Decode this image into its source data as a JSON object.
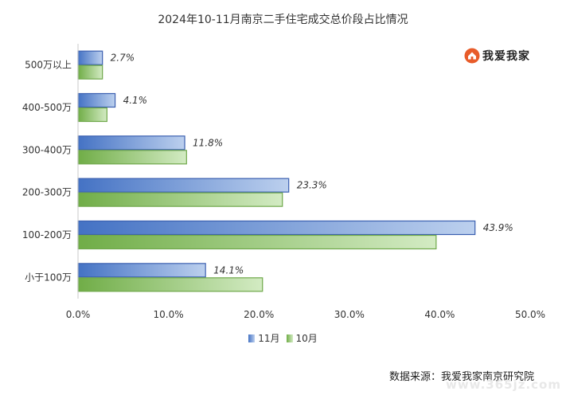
{
  "chart_data": {
    "type": "bar",
    "orientation": "horizontal",
    "title": "2024年10-11月南京二手住宅成交总价段占比情况",
    "categories": [
      "500万以上",
      "400-500万",
      "300-400万",
      "200-300万",
      "100-200万",
      "小于100万"
    ],
    "series": [
      {
        "name": "11月",
        "values": [
          2.7,
          4.1,
          11.8,
          23.3,
          43.9,
          14.1
        ],
        "labels": [
          "2.7%",
          "4.1%",
          "11.8%",
          "23.3%",
          "43.9%",
          "14.1%"
        ]
      },
      {
        "name": "10月",
        "values": [
          2.7,
          3.2,
          12.0,
          22.6,
          39.6,
          20.4
        ]
      }
    ],
    "xlim": [
      0,
      50
    ],
    "xticks": [
      "0.0%",
      "10.0%",
      "20.0%",
      "30.0%",
      "40.0%",
      "50.0%"
    ],
    "xlabel": "",
    "ylabel": "",
    "grid": false,
    "legend_position": "bottom",
    "colors": {
      "nov_start": "#4472c4",
      "nov_end": "#bcd0ee",
      "nov_stroke": "#3a5fb0",
      "oct_start": "#70ad47",
      "oct_end": "#d3ebc3",
      "oct_stroke": "#6fa84a"
    }
  },
  "logo": {
    "text": "我爱我家",
    "icon": "house-icon"
  },
  "source": "数据来源：我爱我家南京研究院",
  "watermark": "www.365jz.com"
}
